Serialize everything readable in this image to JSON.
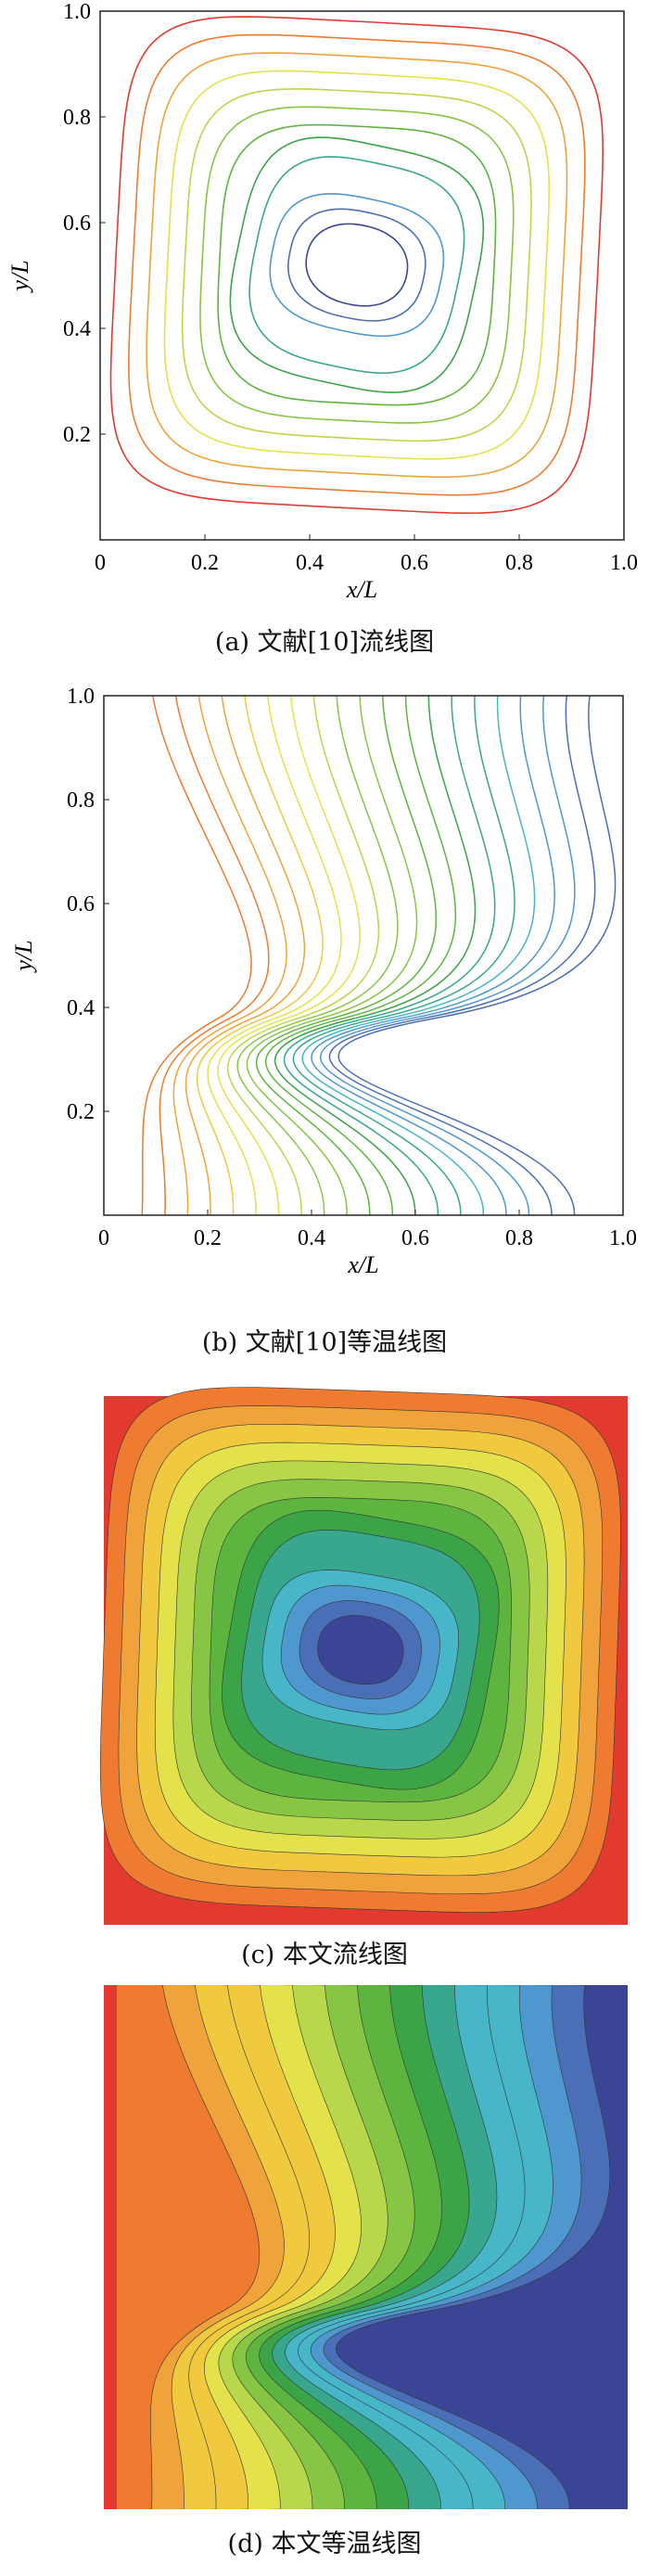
{
  "figure": {
    "panels": [
      {
        "id": "a",
        "caption": "(a) 文献[10]流线图",
        "type": "contour-lines",
        "field": "streamfunction"
      },
      {
        "id": "b",
        "caption": "(b) 文献[10]等温线图",
        "type": "contour-lines",
        "field": "temperature"
      },
      {
        "id": "c",
        "caption": "(c) 本文流线图",
        "type": "filled-contour",
        "field": "streamfunction"
      },
      {
        "id": "d",
        "caption": "(d) 本文等温线图",
        "type": "filled-contour",
        "field": "temperature"
      }
    ]
  },
  "chart_data": [
    {
      "type": "contour",
      "xlabel": "x/L",
      "ylabel": "y/L",
      "xlim": [
        0,
        1
      ],
      "ylim": [
        0,
        1
      ],
      "x_ticks": [
        "0",
        "0.2",
        "0.4",
        "0.6",
        "0.8",
        "1.0"
      ],
      "y_ticks": [
        "0.2",
        "0.4",
        "0.6",
        "0.8",
        "1.0"
      ],
      "levels": 12,
      "vortex_center": [
        0.5,
        0.5
      ]
    },
    {
      "type": "contour",
      "xlabel": "x/L",
      "ylabel": "y/L",
      "xlim": [
        0,
        1
      ],
      "ylim": [
        0,
        1
      ],
      "x_ticks": [
        "0",
        "0.2",
        "0.4",
        "0.6",
        "0.8",
        "1.0"
      ],
      "y_ticks": [
        "0.2",
        "0.4",
        "0.6",
        "0.8",
        "1.0"
      ],
      "levels": 20
    },
    {
      "type": "heatmap",
      "levels": 14,
      "colormap": "red-orange-yellow-green-cyan-blue"
    },
    {
      "type": "heatmap",
      "levels": 14,
      "colormap": "red-orange-yellow-green-cyan-blue"
    }
  ],
  "colors": [
    "#e23a2e",
    "#ee7b30",
    "#f0a33b",
    "#f0c93f",
    "#e4e24a",
    "#b9d74a",
    "#86c644",
    "#5db43e",
    "#3aa447",
    "#38a78e",
    "#46b6c8",
    "#4f98cf",
    "#4b6fb6",
    "#3b4595"
  ]
}
